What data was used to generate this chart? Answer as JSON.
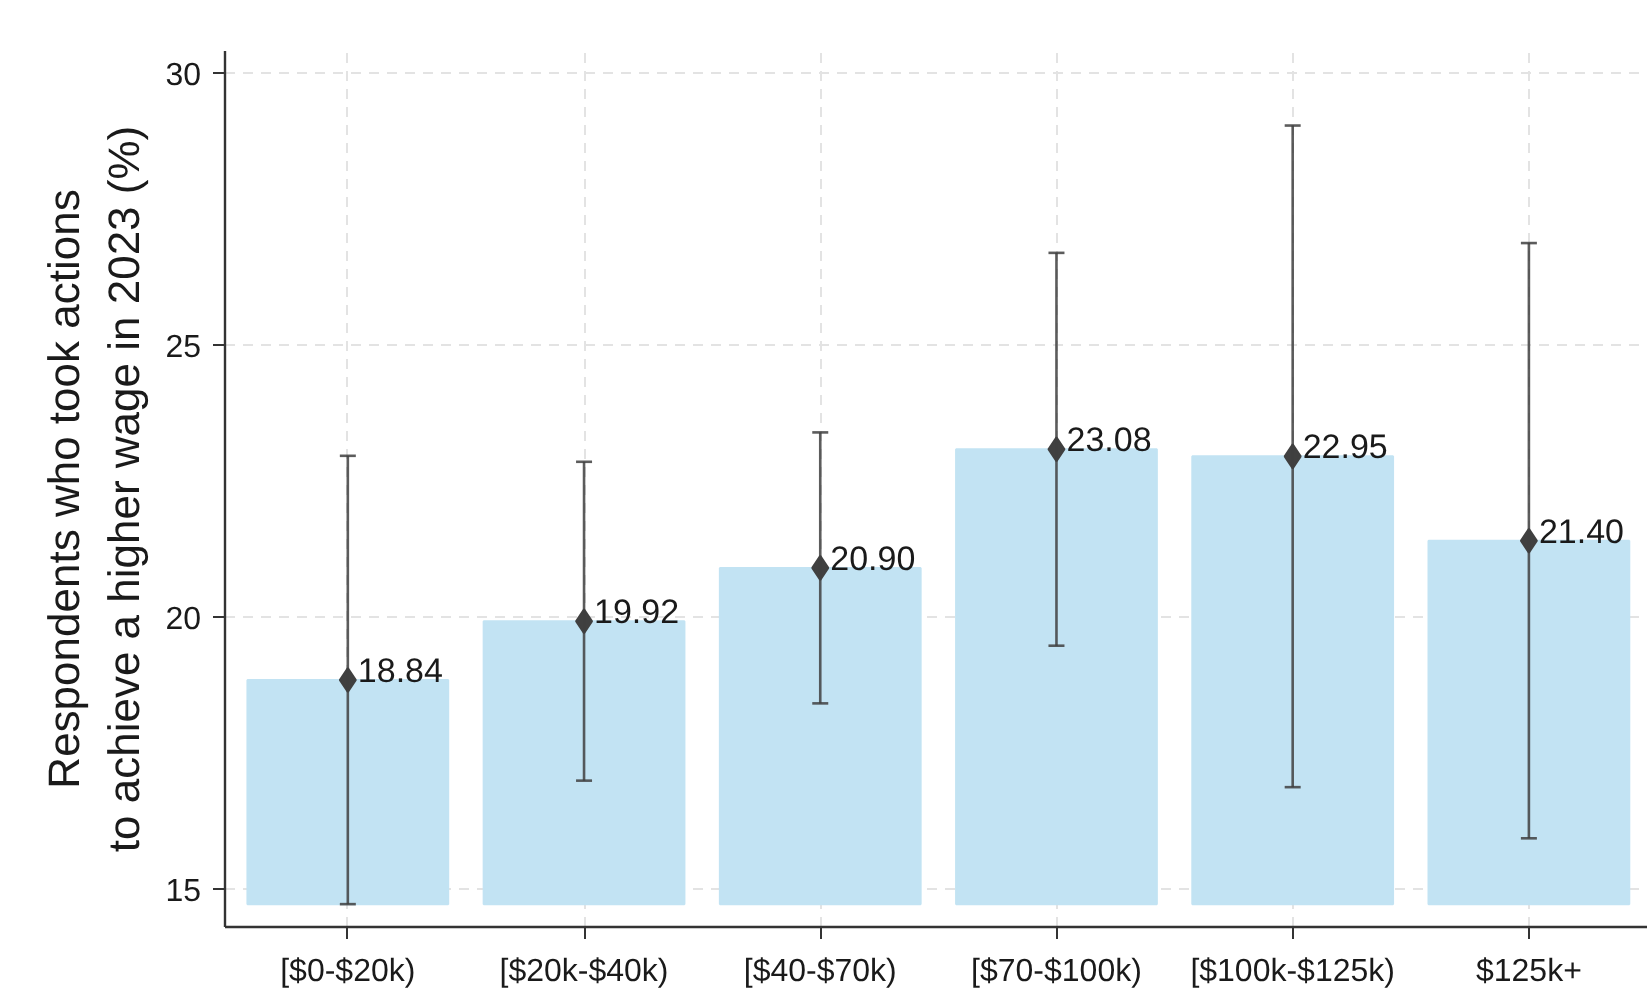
{
  "chart_data": {
    "type": "bar",
    "ylabel": "Respondents who took actions\nto achieve a higher wage in 2023 (%)",
    "categories": [
      "[$0-$20k)",
      "[$20k-$40k)",
      "[$40-$70k)",
      "[$70-$100k)",
      "[$100k-$125k)",
      "$125k+"
    ],
    "ylim": [
      14.3,
      30.4
    ],
    "yticks": [
      15,
      20,
      25,
      30
    ],
    "grid": true,
    "marker": "diamond",
    "series": [
      {
        "color": "#c2e3f3",
        "base": [
          14.72,
          14.72,
          14.72,
          14.72,
          14.72,
          14.72
        ],
        "values": [
          4.12,
          5.2,
          6.18,
          8.36,
          8.23,
          6.68
        ]
      },
      {
        "type": "scatter",
        "color": "#404040",
        "values": [
          18.84,
          19.92,
          20.9,
          23.08,
          22.95,
          21.4
        ],
        "errors": [
          4.12,
          2.93,
          2.49,
          3.61,
          6.08,
          5.47
        ],
        "value_labels": [
          "18.84",
          "19.92",
          "20.90",
          "23.08",
          "22.95",
          "21.40"
        ]
      }
    ]
  }
}
